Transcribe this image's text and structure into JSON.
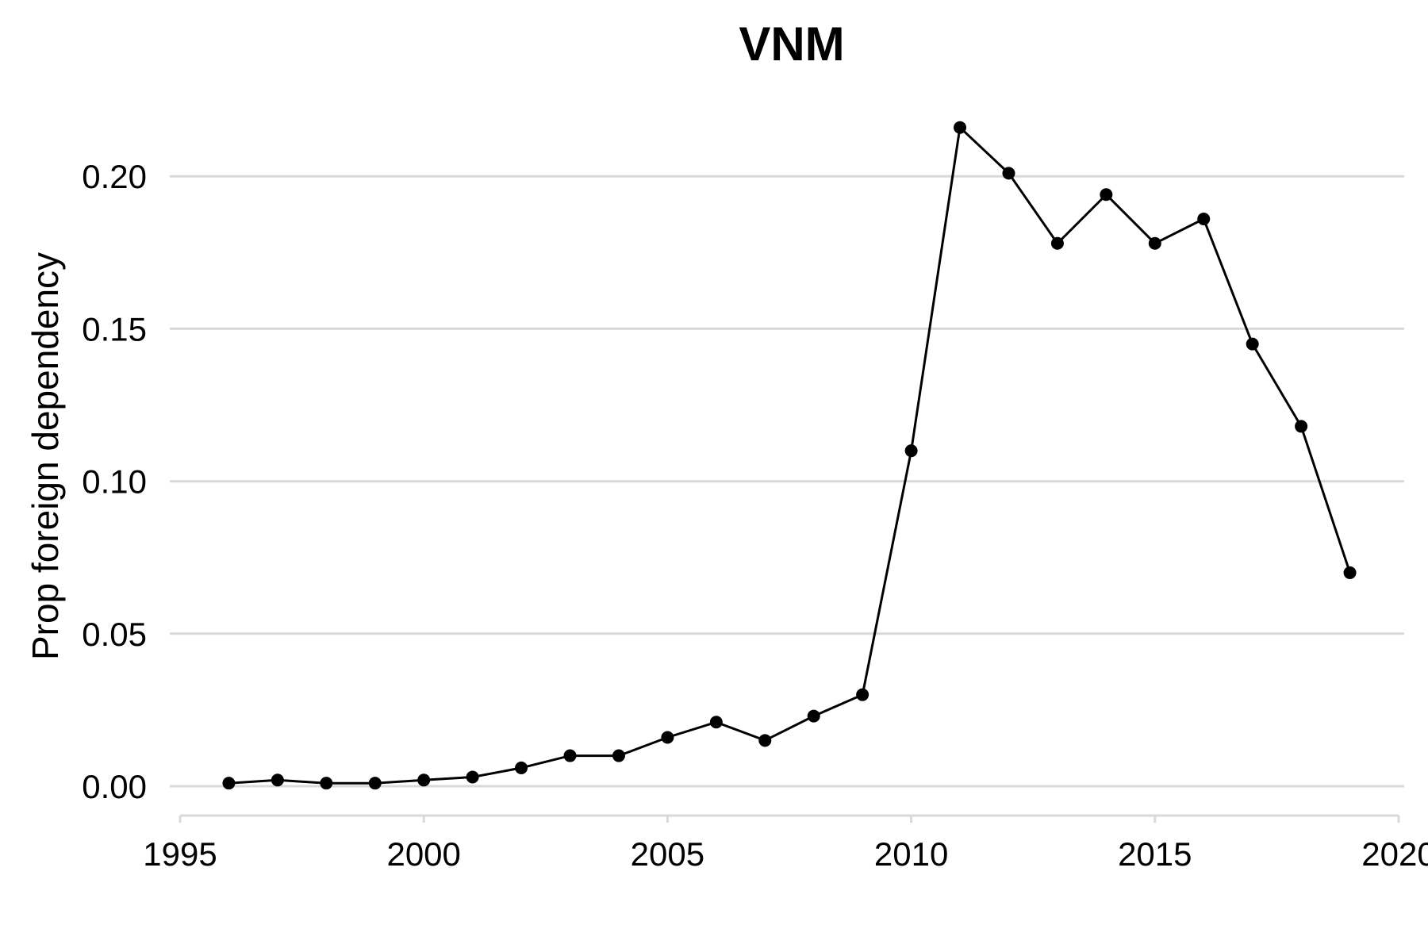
{
  "chart_data": {
    "type": "line",
    "title": "VNM",
    "xlabel": "",
    "ylabel": "Prop foreign dependency",
    "xlim": [
      1995,
      2020
    ],
    "ylim": [
      -0.008,
      0.222
    ],
    "x_ticks": [
      1995,
      2000,
      2005,
      2010,
      2015,
      2020
    ],
    "x_tick_labels": [
      "1995",
      "2000",
      "2005",
      "2010",
      "2015",
      "2020"
    ],
    "y_ticks": [
      0.0,
      0.05,
      0.1,
      0.15,
      0.2
    ],
    "y_tick_labels": [
      "0.00",
      "0.05",
      "0.10",
      "0.15",
      "0.20"
    ],
    "grid": "horizontal",
    "legend": "none",
    "series": [
      {
        "color": "#000000",
        "x": [
          1996,
          1997,
          1998,
          1999,
          2000,
          2001,
          2002,
          2003,
          2004,
          2005,
          2006,
          2007,
          2008,
          2009,
          2010,
          2011,
          2012,
          2013,
          2014,
          2015,
          2016,
          2017,
          2018,
          2019
        ],
        "y": [
          0.001,
          0.002,
          0.001,
          0.001,
          0.002,
          0.003,
          0.006,
          0.01,
          0.01,
          0.016,
          0.021,
          0.015,
          0.023,
          0.03,
          0.11,
          0.216,
          0.201,
          0.178,
          0.194,
          0.178,
          0.186,
          0.145,
          0.118,
          0.07
        ]
      }
    ]
  }
}
